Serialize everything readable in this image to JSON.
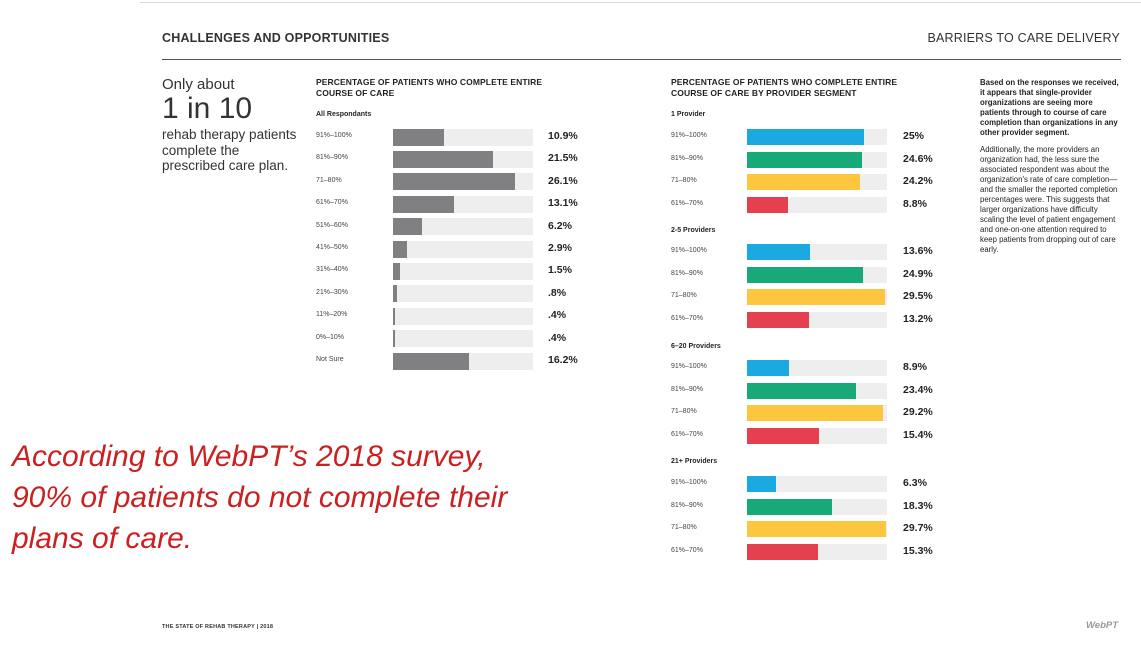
{
  "header": {
    "left": "CHALLENGES AND OPPORTUNITIES",
    "right": "BARRIERS TO CARE DELIVERY"
  },
  "callout": {
    "line1": "Only about",
    "big": "1 in 10",
    "rest": "rehab therapy patients complete the prescribed care plan."
  },
  "note": {
    "bold": "Based on the responses we received, it appears that single-provider organizations are seeing more patients through to course of care completion than organizations in any other provider segment.",
    "body": "Additionally, the more providers an organization had, the less sure the associated respondent was about the organization's rate of care completion—and the smaller the reported completion percentages were. This suggests that larger organizations have difficulty scaling the level of patient engagement and one-on-one attention required to keep patients from dropping out of care early."
  },
  "quote": "According to WebPT’s 2018 survey, 90% of patients do not complete their plans of care.",
  "footer": {
    "left": "THE STATE OF REHAB THERAPY | 2018",
    "right": "WebPT"
  },
  "colors": {
    "gray": "#808083",
    "blue": "#1ba9e1",
    "green": "#18a978",
    "yellow": "#fcc63f",
    "red": "#e5404f"
  },
  "chart_data": [
    {
      "type": "bar",
      "orientation": "horizontal",
      "title": "PERCENTAGE OF PATIENTS WHO COMPLETE ENTIRE COURSE OF CARE",
      "xlim": [
        0,
        30
      ],
      "groups": [
        {
          "name": "All Respondants",
          "categories": [
            "91%–100%",
            "81%–90%",
            "71–80%",
            "61%–70%",
            "51%–60%",
            "41%–50%",
            "31%–40%",
            "21%–30%",
            "11%–20%",
            "0%–10%",
            "Not Sure"
          ],
          "values": [
            10.9,
            21.5,
            26.1,
            13.1,
            6.2,
            2.9,
            1.5,
            0.8,
            0.4,
            0.4,
            16.2
          ],
          "labels": [
            "10.9%",
            "21.5%",
            "26.1%",
            "13.1%",
            "6.2%",
            "2.9%",
            "1.5%",
            ".8%",
            ".4%",
            ".4%",
            "16.2%"
          ],
          "colors": [
            "gray",
            "gray",
            "gray",
            "gray",
            "gray",
            "gray",
            "gray",
            "gray",
            "gray",
            "gray",
            "gray"
          ]
        }
      ]
    },
    {
      "type": "bar",
      "orientation": "horizontal",
      "title": "PERCENTAGE OF PATIENTS WHO COMPLETE ENTIRE COURSE OF CARE BY PROVIDER SEGMENT",
      "xlim": [
        0,
        30
      ],
      "groups": [
        {
          "name": "1 Provider",
          "categories": [
            "91%–100%",
            "81%–90%",
            "71–80%",
            "61%–70%"
          ],
          "values": [
            25,
            24.6,
            24.2,
            8.8
          ],
          "labels": [
            "25%",
            "24.6%",
            "24.2%",
            "8.8%"
          ],
          "colors": [
            "blue",
            "green",
            "yellow",
            "red"
          ]
        },
        {
          "name": "2-5 Providers",
          "categories": [
            "91%–100%",
            "81%–90%",
            "71–80%",
            "61%–70%"
          ],
          "values": [
            13.6,
            24.9,
            29.5,
            13.2
          ],
          "labels": [
            "13.6%",
            "24.9%",
            "29.5%",
            "13.2%"
          ],
          "colors": [
            "blue",
            "green",
            "yellow",
            "red"
          ]
        },
        {
          "name": "6–20 Providers",
          "categories": [
            "91%–100%",
            "81%–90%",
            "71–80%",
            "61%–70%"
          ],
          "values": [
            8.9,
            23.4,
            29.2,
            15.4
          ],
          "labels": [
            "8.9%",
            "23.4%",
            "29.2%",
            "15.4%"
          ],
          "colors": [
            "blue",
            "green",
            "yellow",
            "red"
          ]
        },
        {
          "name": "21+ Providers",
          "categories": [
            "91%–100%",
            "81%–90%",
            "71–80%",
            "61%–70%"
          ],
          "values": [
            6.3,
            18.3,
            29.7,
            15.3
          ],
          "labels": [
            "6.3%",
            "18.3%",
            "29.7%",
            "15.3%"
          ],
          "colors": [
            "blue",
            "green",
            "yellow",
            "red"
          ]
        }
      ]
    }
  ]
}
